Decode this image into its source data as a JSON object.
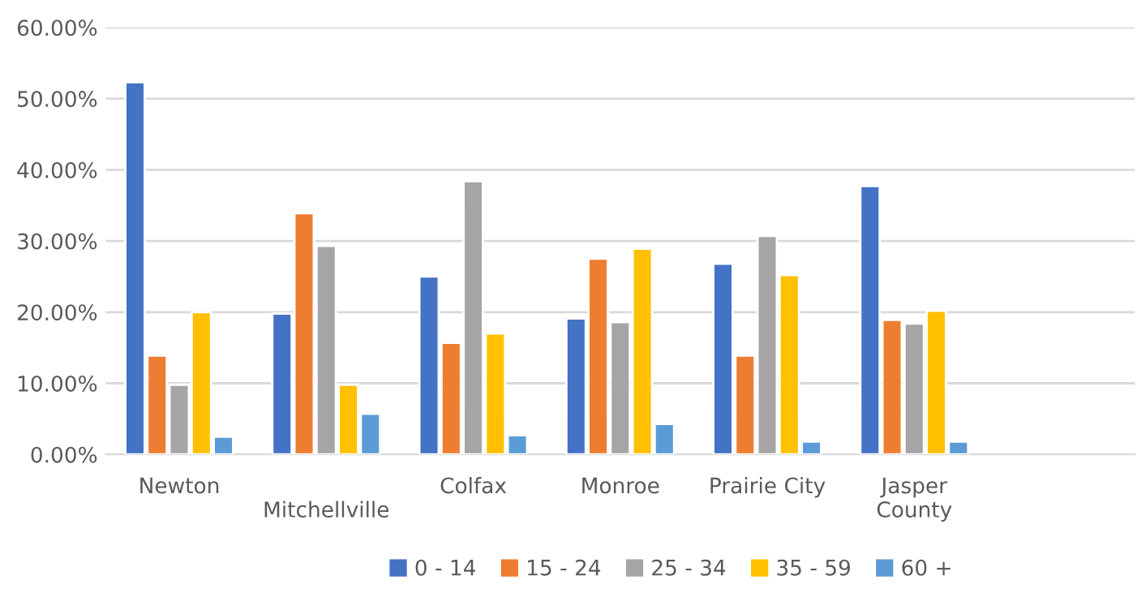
{
  "chart_data": {
    "type": "bar",
    "categories": [
      "Newton",
      "Mitchellville",
      "Colfax",
      "Monroe",
      "Prairie City",
      "Jasper County",
      null
    ],
    "series": [
      {
        "name": "0 - 14",
        "color": "#4472c4",
        "values": [
          52.3,
          19.8,
          25.0,
          19.1,
          26.8,
          37.7,
          null
        ]
      },
      {
        "name": "15 - 24",
        "color": "#ed7d31",
        "values": [
          13.9,
          33.9,
          15.7,
          27.5,
          13.9,
          18.9,
          null
        ]
      },
      {
        "name": "25 - 34",
        "color": "#a5a5a5",
        "values": [
          9.8,
          29.3,
          38.4,
          18.6,
          30.7,
          18.4,
          null
        ]
      },
      {
        "name": "35 - 59",
        "color": "#ffc000",
        "values": [
          20.0,
          9.8,
          17.0,
          28.9,
          25.2,
          20.2,
          null
        ]
      },
      {
        "name": "60 +",
        "color": "#5b9bd5",
        "values": [
          2.5,
          5.7,
          2.7,
          4.3,
          1.8,
          1.8,
          null
        ]
      }
    ],
    "ylim": [
      0,
      60
    ],
    "yticks": [
      {
        "value": 0,
        "label": "0.00%"
      },
      {
        "value": 10,
        "label": "10.00%"
      },
      {
        "value": 20,
        "label": "20.00%"
      },
      {
        "value": 30,
        "label": "30.00%"
      },
      {
        "value": 40,
        "label": "40.00%"
      },
      {
        "value": 50,
        "label": "50.00%"
      },
      {
        "value": 60,
        "label": "60.00%"
      }
    ],
    "grid": "y",
    "legend": "bottom"
  }
}
